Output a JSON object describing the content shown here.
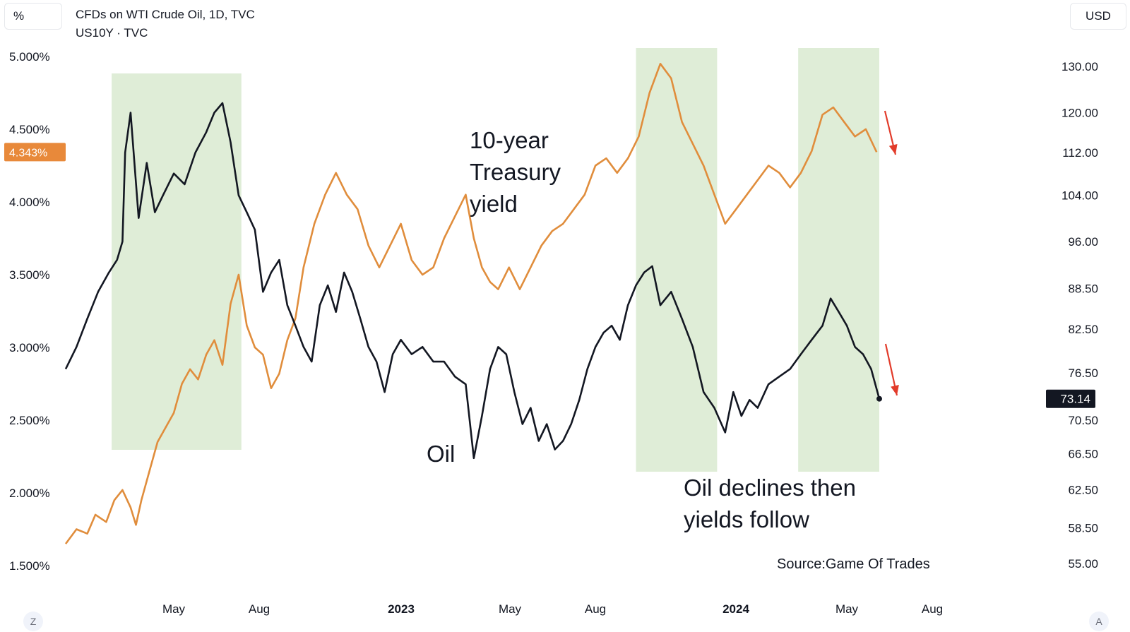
{
  "header": {
    "left_unit": "%",
    "right_unit": "USD",
    "title_line1": "CFDs on WTI Crude Oil, 1D, TVC",
    "title_line2": "US10Y · TVC"
  },
  "controls": {
    "left_button": "Z",
    "right_button": "A"
  },
  "chart_data": {
    "type": "line",
    "left_axis": {
      "ticks": [
        "5.000%",
        "4.500%",
        "4.000%",
        "3.500%",
        "3.000%",
        "2.500%",
        "2.000%",
        "1.500%"
      ],
      "values": [
        5.0,
        4.5,
        4.0,
        3.5,
        3.0,
        2.5,
        2.0,
        1.5
      ],
      "current_label": "4.343%",
      "current_value": 4.343
    },
    "right_axis": {
      "scale": "log",
      "ticks": [
        "130.00",
        "120.00",
        "112.00",
        "104.00",
        "96.00",
        "88.50",
        "82.50",
        "76.50",
        "70.50",
        "66.50",
        "62.50",
        "58.50",
        "55.00"
      ],
      "values": [
        130,
        120,
        112,
        104,
        96,
        88.5,
        82.5,
        76.5,
        70.5,
        66.5,
        62.5,
        58.5,
        55
      ],
      "current_label": "73.14",
      "current_value": 73.14
    },
    "x_axis": {
      "ticks": [
        "May",
        "Aug",
        "2023",
        "May",
        "Aug",
        "2024",
        "May",
        "Aug"
      ],
      "bold": [
        false,
        false,
        true,
        false,
        false,
        true,
        false,
        false
      ]
    },
    "series": [
      {
        "name": "10-year Treasury yield",
        "axis": "left",
        "color": "#e08d3c",
        "points": [
          [
            0,
            1.65
          ],
          [
            4,
            1.75
          ],
          [
            8,
            1.72
          ],
          [
            11,
            1.85
          ],
          [
            15,
            1.8
          ],
          [
            18,
            1.95
          ],
          [
            21,
            2.02
          ],
          [
            24,
            1.9
          ],
          [
            26,
            1.78
          ],
          [
            28,
            1.95
          ],
          [
            31,
            2.15
          ],
          [
            34,
            2.35
          ],
          [
            37,
            2.45
          ],
          [
            40,
            2.55
          ],
          [
            43,
            2.75
          ],
          [
            46,
            2.85
          ],
          [
            49,
            2.78
          ],
          [
            52,
            2.95
          ],
          [
            55,
            3.05
          ],
          [
            58,
            2.88
          ],
          [
            61,
            3.3
          ],
          [
            64,
            3.5
          ],
          [
            67,
            3.15
          ],
          [
            70,
            3.0
          ],
          [
            73,
            2.95
          ],
          [
            76,
            2.72
          ],
          [
            79,
            2.82
          ],
          [
            82,
            3.05
          ],
          [
            85,
            3.2
          ],
          [
            88,
            3.55
          ],
          [
            92,
            3.85
          ],
          [
            96,
            4.05
          ],
          [
            100,
            4.2
          ],
          [
            104,
            4.05
          ],
          [
            108,
            3.95
          ],
          [
            112,
            3.7
          ],
          [
            116,
            3.55
          ],
          [
            120,
            3.7
          ],
          [
            124,
            3.85
          ],
          [
            128,
            3.6
          ],
          [
            132,
            3.5
          ],
          [
            136,
            3.55
          ],
          [
            140,
            3.75
          ],
          [
            144,
            3.9
          ],
          [
            148,
            4.05
          ],
          [
            151,
            3.75
          ],
          [
            154,
            3.55
          ],
          [
            157,
            3.45
          ],
          [
            160,
            3.4
          ],
          [
            164,
            3.55
          ],
          [
            168,
            3.4
          ],
          [
            172,
            3.55
          ],
          [
            176,
            3.7
          ],
          [
            180,
            3.8
          ],
          [
            184,
            3.85
          ],
          [
            188,
            3.95
          ],
          [
            192,
            4.05
          ],
          [
            196,
            4.25
          ],
          [
            200,
            4.3
          ],
          [
            204,
            4.2
          ],
          [
            208,
            4.3
          ],
          [
            212,
            4.45
          ],
          [
            216,
            4.75
          ],
          [
            220,
            4.95
          ],
          [
            224,
            4.85
          ],
          [
            228,
            4.55
          ],
          [
            232,
            4.4
          ],
          [
            236,
            4.25
          ],
          [
            240,
            4.05
          ],
          [
            244,
            3.85
          ],
          [
            248,
            3.95
          ],
          [
            252,
            4.05
          ],
          [
            256,
            4.15
          ],
          [
            260,
            4.25
          ],
          [
            264,
            4.2
          ],
          [
            268,
            4.1
          ],
          [
            272,
            4.2
          ],
          [
            276,
            4.35
          ],
          [
            280,
            4.6
          ],
          [
            284,
            4.65
          ],
          [
            288,
            4.55
          ],
          [
            292,
            4.45
          ],
          [
            296,
            4.5
          ],
          [
            300,
            4.343
          ]
        ]
      },
      {
        "name": "Oil",
        "axis": "right",
        "color": "#131722",
        "points": [
          [
            0,
            77
          ],
          [
            4,
            80
          ],
          [
            8,
            84
          ],
          [
            12,
            88
          ],
          [
            16,
            91
          ],
          [
            19,
            93
          ],
          [
            21,
            96
          ],
          [
            22,
            112
          ],
          [
            24,
            120
          ],
          [
            27,
            100
          ],
          [
            30,
            110
          ],
          [
            33,
            101
          ],
          [
            36,
            104
          ],
          [
            40,
            108
          ],
          [
            44,
            106
          ],
          [
            48,
            112
          ],
          [
            52,
            116
          ],
          [
            55,
            120
          ],
          [
            58,
            122
          ],
          [
            61,
            114
          ],
          [
            64,
            104
          ],
          [
            67,
            101
          ],
          [
            70,
            98
          ],
          [
            73,
            88
          ],
          [
            76,
            91
          ],
          [
            79,
            93
          ],
          [
            82,
            86
          ],
          [
            85,
            83
          ],
          [
            88,
            80
          ],
          [
            91,
            78
          ],
          [
            94,
            86
          ],
          [
            97,
            89
          ],
          [
            100,
            85
          ],
          [
            103,
            91
          ],
          [
            106,
            88
          ],
          [
            109,
            84
          ],
          [
            112,
            80
          ],
          [
            115,
            78
          ],
          [
            118,
            74
          ],
          [
            121,
            79
          ],
          [
            124,
            81
          ],
          [
            128,
            79
          ],
          [
            132,
            80
          ],
          [
            136,
            78
          ],
          [
            140,
            78
          ],
          [
            144,
            76
          ],
          [
            148,
            75
          ],
          [
            151,
            66
          ],
          [
            154,
            71
          ],
          [
            157,
            77
          ],
          [
            160,
            80
          ],
          [
            163,
            79
          ],
          [
            166,
            74
          ],
          [
            169,
            70
          ],
          [
            172,
            72
          ],
          [
            175,
            68
          ],
          [
            178,
            70
          ],
          [
            181,
            67
          ],
          [
            184,
            68
          ],
          [
            187,
            70
          ],
          [
            190,
            73
          ],
          [
            193,
            77
          ],
          [
            196,
            80
          ],
          [
            199,
            82
          ],
          [
            202,
            83
          ],
          [
            205,
            81
          ],
          [
            208,
            86
          ],
          [
            211,
            89
          ],
          [
            214,
            91
          ],
          [
            217,
            92
          ],
          [
            220,
            86
          ],
          [
            224,
            88
          ],
          [
            228,
            84
          ],
          [
            232,
            80
          ],
          [
            236,
            74
          ],
          [
            240,
            72
          ],
          [
            244,
            69
          ],
          [
            247,
            74
          ],
          [
            250,
            71
          ],
          [
            253,
            73
          ],
          [
            256,
            72
          ],
          [
            260,
            75
          ],
          [
            264,
            76
          ],
          [
            268,
            77
          ],
          [
            272,
            79
          ],
          [
            276,
            81
          ],
          [
            280,
            83
          ],
          [
            283,
            87
          ],
          [
            286,
            85
          ],
          [
            289,
            83
          ],
          [
            292,
            80
          ],
          [
            295,
            79
          ],
          [
            298,
            77
          ],
          [
            301,
            73.14
          ]
        ]
      }
    ],
    "shaded_regions": [
      [
        17,
        65
      ],
      [
        211,
        241
      ],
      [
        271,
        301
      ]
    ],
    "annotations": [
      "10-year\nTreasury\nyield",
      "Oil",
      "Oil declines then\nyields follow",
      "Source:Game Of Trades"
    ],
    "grid": false
  }
}
